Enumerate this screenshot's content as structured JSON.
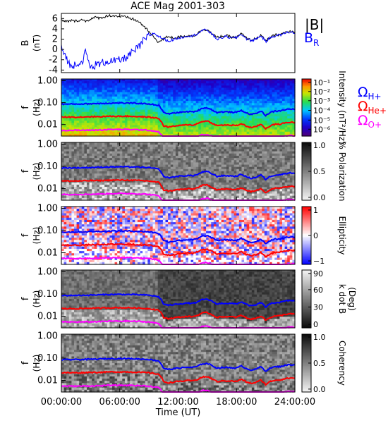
{
  "chart_data": {
    "title": "ACE Mag 2001-303",
    "type": "line",
    "time_axis": {
      "label": "Time (UT)",
      "ticks": [
        "00:00:00",
        "06:00:00",
        "12:00:00",
        "18:00:00",
        "24:00:00"
      ],
      "range_hours": [
        0,
        24
      ]
    },
    "colors": {
      "total_B": "#000000",
      "B_R": "#0000ff",
      "H_plus": "#0000ff",
      "He_plus": "#ff0000",
      "O_plus": "#ff00ff"
    },
    "panels": [
      {
        "name": "field",
        "type": "line",
        "ylabel": [
          "B",
          "(nT)"
        ],
        "yticks": [
          "6",
          "4",
          "2",
          "0",
          "-2",
          "-4"
        ],
        "ylim": [
          -4.5,
          7
        ],
        "legend": [
          "|B|",
          "B_R"
        ],
        "series": [
          {
            "name": "|B|",
            "x": [
              0,
              0.5,
              1,
              1.5,
              2,
              2.5,
              3,
              3.5,
              4,
              4.5,
              5,
              5.5,
              6,
              6.5,
              7,
              7.5,
              8,
              8.5,
              9,
              9.5,
              10,
              10.5,
              11,
              11.5,
              12,
              12.5,
              13,
              13.5,
              14,
              14.5,
              15,
              15.5,
              16,
              16.5,
              17,
              17.5,
              18,
              18.5,
              19,
              19.5,
              20,
              20.5,
              21,
              21.5,
              22,
              22.5,
              23,
              23.5,
              24
            ],
            "values": [
              5.6,
              5.4,
              5.6,
              5.5,
              5.8,
              5.5,
              5.9,
              6.2,
              6.1,
              6.4,
              6.6,
              6.5,
              6.4,
              6.3,
              6.1,
              5.8,
              5.3,
              4.5,
              3.4,
              2.4,
              1.4,
              2.0,
              2.6,
              2.2,
              2.4,
              2.5,
              2.7,
              2.6,
              3.1,
              3.8,
              3.9,
              3.0,
              2.3,
              2.6,
              2.6,
              2.4,
              2.3,
              3.1,
              2.2,
              1.8,
              2.1,
              2.8,
              1.6,
              2.4,
              2.8,
              2.9,
              3.3,
              3.5,
              3.3
            ]
          },
          {
            "name": "B_R",
            "x": [
              0,
              0.5,
              1,
              1.5,
              2,
              2.5,
              3,
              3.5,
              4,
              4.5,
              5,
              5.5,
              6,
              6.5,
              7,
              7.5,
              8,
              8.5,
              9,
              9.5,
              10,
              10.5,
              11,
              11.5,
              12,
              12.5,
              13,
              13.5,
              14,
              14.5,
              15,
              15.5,
              16,
              16.5,
              17,
              17.5,
              18,
              18.5,
              19,
              19.5,
              20,
              20.5,
              21,
              21.5,
              22,
              22.5,
              23,
              23.5,
              24
            ],
            "values": [
              0.2,
              -1.5,
              -3.6,
              -2.5,
              -2.8,
              -0.5,
              -3.7,
              -3.0,
              -2.8,
              -2.4,
              -2.2,
              -2.3,
              -2.1,
              -1.8,
              -1.0,
              -0.3,
              0.5,
              1.8,
              2.6,
              3.2,
              2.5,
              2.1,
              1.6,
              1.9,
              2.2,
              2.4,
              2.7,
              2.6,
              3.1,
              3.7,
              3.8,
              2.9,
              2.0,
              2.3,
              2.5,
              2.2,
              2.3,
              3.0,
              2.1,
              1.7,
              2.0,
              2.7,
              1.5,
              2.3,
              2.7,
              2.8,
              3.2,
              3.4,
              3.2
            ]
          }
        ]
      },
      {
        "name": "intensity",
        "type": "heatmap",
        "ylabel": [
          "f",
          "(Hz)"
        ],
        "colorbar_label": "Intensity (nT²/Hz)",
        "colorbar_ticks": [
          "10⁻¹",
          "10⁻²",
          "10⁻³",
          "10⁻⁴",
          "10⁻⁵",
          "10⁻⁶"
        ],
        "legend": [
          "Ω_H+",
          "Ω_He+",
          "Ω_O+"
        ]
      },
      {
        "name": "polarization",
        "type": "heatmap",
        "ylabel": [
          "f",
          "(Hz)"
        ],
        "colorbar_label": "% Polarization",
        "colorbar_ticks": [
          "1.0",
          "0.5",
          "0.0"
        ]
      },
      {
        "name": "ellipticity",
        "type": "heatmap",
        "ylabel": [
          "f",
          "(Hz)"
        ],
        "colorbar_label": "Ellipticity",
        "colorbar_ticks": [
          "1",
          "0",
          "−1"
        ]
      },
      {
        "name": "kdotb",
        "type": "heatmap",
        "ylabel": [
          "f",
          "(Hz)"
        ],
        "colorbar_label": "k dot B (Deg)",
        "colorbar_label_lines": [
          "k dot B",
          "(Deg)"
        ],
        "colorbar_ticks": [
          "90",
          "60",
          "30",
          "0"
        ]
      },
      {
        "name": "coherency",
        "type": "heatmap",
        "ylabel": [
          "f",
          "(Hz)"
        ],
        "colorbar_label": "Coherency",
        "colorbar_ticks": [
          "1.0",
          "0.5",
          "0.0"
        ]
      }
    ],
    "frequency_axis": {
      "scale": "log",
      "ylim_hz": [
        0.003,
        1.2
      ],
      "ticks": [
        "1.00",
        "0.10",
        "0.01"
      ]
    },
    "gyrofrequencies": {
      "x_hours": [
        0,
        1,
        2,
        3,
        4,
        5,
        6,
        7,
        8,
        9,
        10,
        10.5,
        11,
        11.5,
        12,
        12.5,
        13,
        13.5,
        14,
        14.5,
        15,
        15.5,
        16,
        16.5,
        17,
        17.5,
        18,
        18.5,
        19,
        19.5,
        20,
        20.5,
        21,
        21.5,
        22,
        22.5,
        23,
        23.5,
        24
      ],
      "H_plus_hz": [
        0.085,
        0.086,
        0.087,
        0.089,
        0.092,
        0.095,
        0.096,
        0.095,
        0.092,
        0.088,
        0.075,
        0.035,
        0.031,
        0.033,
        0.036,
        0.037,
        0.039,
        0.038,
        0.043,
        0.056,
        0.058,
        0.046,
        0.035,
        0.038,
        0.038,
        0.037,
        0.036,
        0.044,
        0.034,
        0.029,
        0.032,
        0.041,
        0.026,
        0.036,
        0.041,
        0.042,
        0.048,
        0.051,
        0.05
      ],
      "He_plus_hz": [
        0.022,
        0.022,
        0.022,
        0.023,
        0.023,
        0.024,
        0.024,
        0.024,
        0.023,
        0.022,
        0.019,
        0.0088,
        0.0078,
        0.0083,
        0.009,
        0.0093,
        0.0098,
        0.0095,
        0.011,
        0.014,
        0.0145,
        0.0115,
        0.0088,
        0.0095,
        0.0095,
        0.0093,
        0.009,
        0.011,
        0.0085,
        0.0073,
        0.008,
        0.0103,
        0.0065,
        0.009,
        0.0103,
        0.0105,
        0.012,
        0.0128,
        0.0125
      ],
      "O_plus_hz": [
        0.0055,
        0.0055,
        0.0055,
        0.0056,
        0.0057,
        0.006,
        0.006,
        0.006,
        0.0058,
        0.0055,
        0.0047,
        0.0022,
        0.002,
        0.0021,
        0.0023,
        0.0023,
        0.0025,
        0.0024,
        0.0027,
        0.0035,
        0.0036,
        0.0029,
        0.0022,
        0.0024,
        0.0024,
        0.0023,
        0.0023,
        0.0028,
        0.0021,
        0.0018,
        0.002,
        0.0026,
        0.0016,
        0.0023,
        0.0026,
        0.0026,
        0.003,
        0.0032,
        0.0031
      ]
    }
  }
}
